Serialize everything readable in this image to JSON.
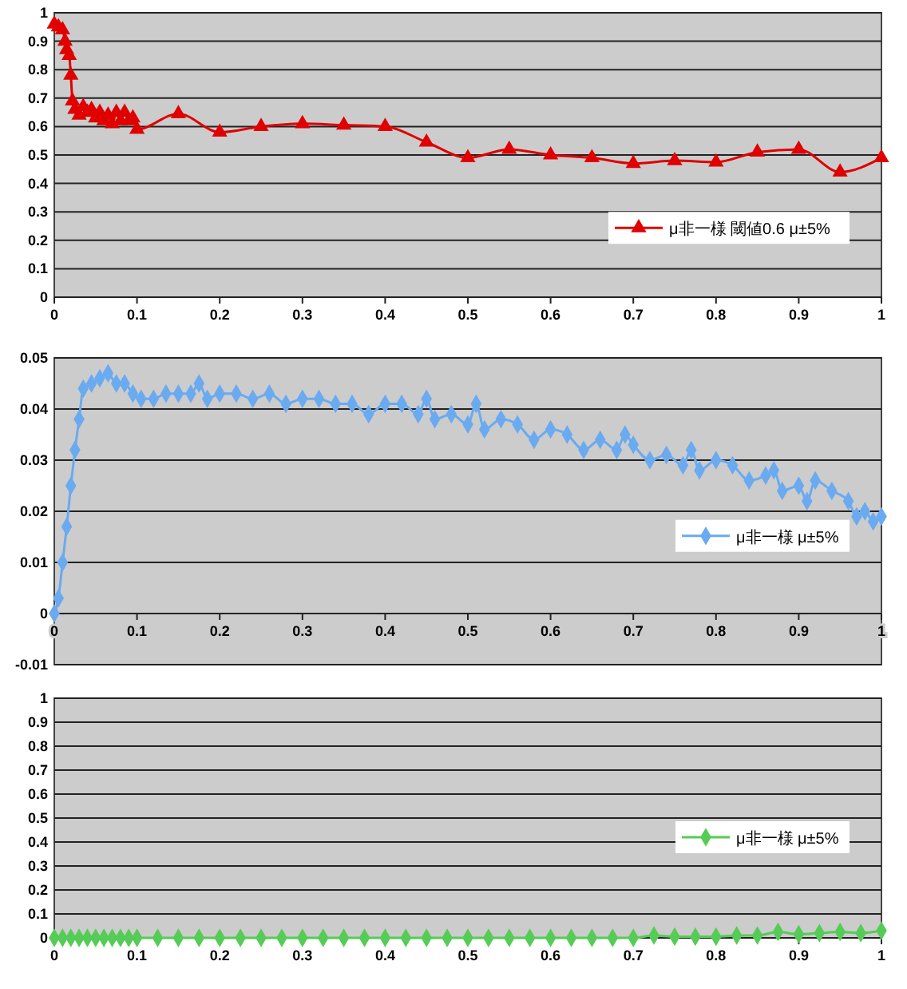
{
  "chart_data": [
    {
      "type": "line",
      "xlim": [
        0,
        1
      ],
      "xticks": [
        0,
        0.1,
        0.2,
        0.3,
        0.4,
        0.5,
        0.6,
        0.7,
        0.8,
        0.9,
        1
      ],
      "ylim": [
        0,
        1
      ],
      "yticks": [
        0,
        0.1,
        0.2,
        0.3,
        0.4,
        0.5,
        0.6,
        0.7,
        0.8,
        0.9,
        1
      ],
      "grid": "y",
      "legend": "bottom right",
      "marker": "triangle",
      "line_style": "solid",
      "series": [
        {
          "name": "μ非一様 閾値0.6 μ±5%",
          "color": "#e00000",
          "x": [
            0,
            0.005,
            0.01,
            0.013,
            0.015,
            0.018,
            0.02,
            0.022,
            0.025,
            0.03,
            0.035,
            0.04,
            0.045,
            0.05,
            0.055,
            0.06,
            0.065,
            0.07,
            0.075,
            0.08,
            0.085,
            0.09,
            0.095,
            0.1,
            0.15,
            0.2,
            0.25,
            0.3,
            0.35,
            0.4,
            0.45,
            0.5,
            0.55,
            0.6,
            0.65,
            0.7,
            0.75,
            0.8,
            0.85,
            0.9,
            0.95,
            1
          ],
          "values": [
            0.96,
            0.95,
            0.94,
            0.9,
            0.87,
            0.85,
            0.78,
            0.69,
            0.66,
            0.64,
            0.67,
            0.65,
            0.66,
            0.63,
            0.65,
            0.62,
            0.64,
            0.61,
            0.65,
            0.62,
            0.65,
            0.62,
            0.63,
            0.59,
            0.645,
            0.58,
            0.6,
            0.61,
            0.605,
            0.6,
            0.545,
            0.49,
            0.52,
            0.5,
            0.49,
            0.47,
            0.48,
            0.475,
            0.51,
            0.52,
            0.44,
            0.49
          ]
        }
      ]
    },
    {
      "type": "line",
      "xlim": [
        0,
        1
      ],
      "xticks": [
        0,
        0.1,
        0.2,
        0.3,
        0.4,
        0.5,
        0.6,
        0.7,
        0.8,
        0.9,
        1
      ],
      "ylim": [
        -0.01,
        0.05
      ],
      "yticks": [
        -0.01,
        0,
        0.01,
        0.02,
        0.03,
        0.04,
        0.05
      ],
      "grid": "y",
      "legend": "right",
      "marker": "diamond",
      "line_style": "solid",
      "series": [
        {
          "name": "μ非一様 μ±5%",
          "color": "#6aaaf0",
          "x": [
            0,
            0.005,
            0.01,
            0.015,
            0.02,
            0.025,
            0.03,
            0.035,
            0.045,
            0.055,
            0.065,
            0.075,
            0.085,
            0.095,
            0.105,
            0.12,
            0.135,
            0.15,
            0.165,
            0.175,
            0.185,
            0.2,
            0.22,
            0.24,
            0.26,
            0.28,
            0.3,
            0.32,
            0.34,
            0.36,
            0.38,
            0.4,
            0.42,
            0.44,
            0.45,
            0.46,
            0.48,
            0.5,
            0.51,
            0.52,
            0.54,
            0.56,
            0.58,
            0.6,
            0.62,
            0.64,
            0.66,
            0.68,
            0.69,
            0.7,
            0.72,
            0.74,
            0.76,
            0.77,
            0.78,
            0.8,
            0.82,
            0.84,
            0.86,
            0.87,
            0.88,
            0.9,
            0.91,
            0.92,
            0.94,
            0.96,
            0.97,
            0.98,
            0.99,
            1
          ],
          "values": [
            0,
            0.003,
            0.01,
            0.017,
            0.025,
            0.032,
            0.038,
            0.044,
            0.045,
            0.046,
            0.047,
            0.045,
            0.045,
            0.043,
            0.042,
            0.042,
            0.043,
            0.043,
            0.043,
            0.045,
            0.042,
            0.043,
            0.043,
            0.042,
            0.043,
            0.041,
            0.042,
            0.042,
            0.041,
            0.041,
            0.039,
            0.041,
            0.041,
            0.039,
            0.042,
            0.038,
            0.039,
            0.037,
            0.041,
            0.036,
            0.038,
            0.037,
            0.034,
            0.036,
            0.035,
            0.032,
            0.034,
            0.032,
            0.035,
            0.033,
            0.03,
            0.031,
            0.029,
            0.032,
            0.028,
            0.03,
            0.029,
            0.026,
            0.027,
            0.028,
            0.024,
            0.025,
            0.022,
            0.026,
            0.024,
            0.022,
            0.019,
            0.02,
            0.018,
            0.019
          ]
        }
      ]
    },
    {
      "type": "line",
      "xlim": [
        0,
        1
      ],
      "xticks": [
        0,
        0.1,
        0.2,
        0.3,
        0.4,
        0.5,
        0.6,
        0.7,
        0.8,
        0.9,
        1
      ],
      "ylim": [
        0,
        1
      ],
      "yticks": [
        0,
        0.1,
        0.2,
        0.3,
        0.4,
        0.5,
        0.6,
        0.7,
        0.8,
        0.9,
        1
      ],
      "grid": "y",
      "legend": "right",
      "marker": "diamond",
      "line_style": "solid",
      "series": [
        {
          "name": "μ非一様 μ±5%",
          "color": "#55cc55",
          "x": [
            0,
            0.01,
            0.02,
            0.03,
            0.04,
            0.05,
            0.06,
            0.07,
            0.08,
            0.09,
            0.1,
            0.125,
            0.15,
            0.175,
            0.2,
            0.225,
            0.25,
            0.275,
            0.3,
            0.325,
            0.35,
            0.375,
            0.4,
            0.425,
            0.45,
            0.475,
            0.5,
            0.525,
            0.55,
            0.575,
            0.6,
            0.625,
            0.65,
            0.675,
            0.7,
            0.725,
            0.75,
            0.775,
            0.8,
            0.825,
            0.85,
            0.875,
            0.9,
            0.925,
            0.95,
            0.975,
            1
          ],
          "values": [
            0,
            0,
            0,
            0,
            0,
            0,
            0,
            0,
            0,
            0,
            0,
            0,
            0,
            0,
            0,
            0,
            0,
            0,
            0,
            0,
            0,
            0,
            0,
            0,
            0,
            0,
            0,
            0,
            0,
            0,
            0,
            0,
            0,
            0,
            0,
            0.01,
            0.005,
            0.005,
            0.005,
            0.01,
            0.01,
            0.025,
            0.015,
            0.02,
            0.025,
            0.02,
            0.03
          ]
        }
      ]
    }
  ]
}
